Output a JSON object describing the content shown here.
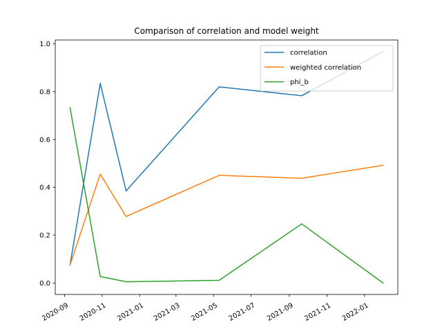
{
  "chart_data": {
    "type": "line",
    "title": "Comparison of correlation and model weight",
    "xlabel": "",
    "ylabel": "",
    "x": [
      "2020-09-10",
      "2020-10-29",
      "2020-12-10",
      "2021-05-10",
      "2021-09-21",
      "2022-01-31"
    ],
    "series": [
      {
        "name": "correlation",
        "color": "#1f77b4",
        "values": [
          0.075,
          0.835,
          0.385,
          0.82,
          0.783,
          0.968
        ]
      },
      {
        "name": "weighted correlation",
        "color": "#ff7f0e",
        "values": [
          0.075,
          0.455,
          0.278,
          0.45,
          0.438,
          0.492
        ]
      },
      {
        "name": "phi_b",
        "color": "#2ca02c",
        "values": [
          0.733,
          0.027,
          0.005,
          0.011,
          0.247,
          0.0
        ]
      }
    ],
    "xlim": [
      "2020-08-17",
      "2022-02-24"
    ],
    "ylim": [
      -0.048,
      1.016
    ],
    "x_ticks": [
      {
        "date": "2020-09-01",
        "label": "2020-09"
      },
      {
        "date": "2020-11-01",
        "label": "2020-11"
      },
      {
        "date": "2021-01-01",
        "label": "2021-01"
      },
      {
        "date": "2021-03-01",
        "label": "2021-03"
      },
      {
        "date": "2021-05-01",
        "label": "2021-05"
      },
      {
        "date": "2021-07-01",
        "label": "2021-07"
      },
      {
        "date": "2021-09-01",
        "label": "2021-09"
      },
      {
        "date": "2021-11-01",
        "label": "2021-11"
      },
      {
        "date": "2022-01-01",
        "label": "2022-01"
      }
    ],
    "y_ticks": [
      {
        "value": 0.0,
        "label": "0.0"
      },
      {
        "value": 0.2,
        "label": "0.2"
      },
      {
        "value": 0.4,
        "label": "0.4"
      },
      {
        "value": 0.6,
        "label": "0.6"
      },
      {
        "value": 0.8,
        "label": "0.8"
      },
      {
        "value": 1.0,
        "label": "1.0"
      }
    ],
    "grid": false,
    "legend_position": "upper right"
  }
}
